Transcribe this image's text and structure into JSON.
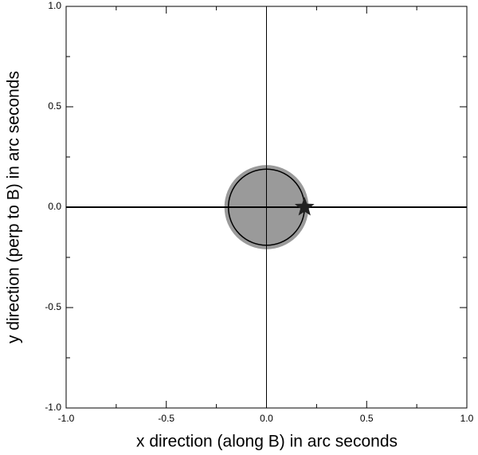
{
  "chart_data": {
    "type": "scatter",
    "xlabel": "x direction (along B) in arc seconds",
    "ylabel": "y direction (perp to B) in arc seconds",
    "xlim": [
      -1.0,
      1.0
    ],
    "ylim": [
      -1.0,
      1.0
    ],
    "xticks": [
      {
        "value": -1.0,
        "label": "-1.0"
      },
      {
        "value": -0.5,
        "label": "-0.5"
      },
      {
        "value": 0.0,
        "label": "0.0"
      },
      {
        "value": 0.5,
        "label": "0.5"
      },
      {
        "value": 1.0,
        "label": "1.0"
      }
    ],
    "yticks": [
      {
        "value": -1.0,
        "label": "-1.0"
      },
      {
        "value": -0.5,
        "label": "-0.5"
      },
      {
        "value": 0.0,
        "label": "0.0"
      },
      {
        "value": 0.5,
        "label": "0.5"
      },
      {
        "value": 1.0,
        "label": "1.0"
      }
    ],
    "xminorticks": [
      -0.75,
      -0.25,
      0.25,
      0.75
    ],
    "yminorticks": [
      -0.75,
      -0.25,
      0.25,
      0.75
    ],
    "disk": {
      "radius": 0.21,
      "color": "#9a9a9a"
    },
    "circle": {
      "radius": 0.19,
      "color": "#000000"
    },
    "star": {
      "x": 0.19,
      "y": 0.0,
      "color": "#222222"
    }
  }
}
